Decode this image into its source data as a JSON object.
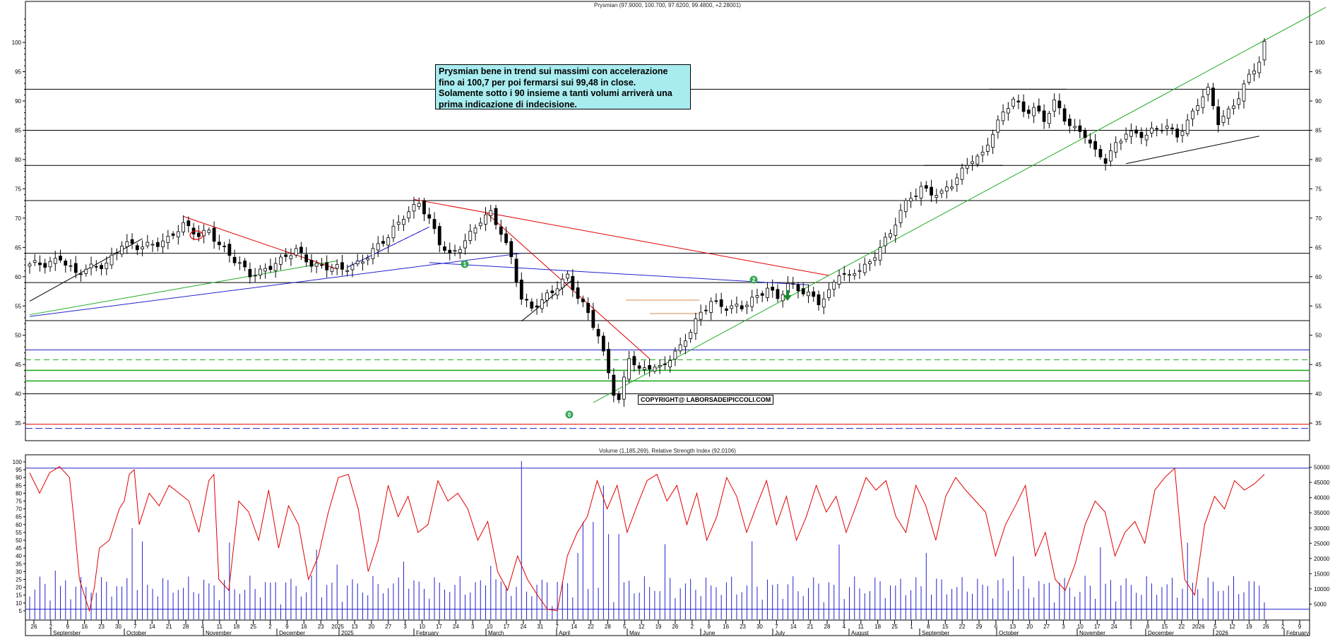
{
  "header": {
    "price_title": "Prysmian (97.9000, 100.700, 97.6200, 99.4800, +2.28001)",
    "indicator_title": "Volume (1,185,269), Relative Strength Index (92.0106)"
  },
  "annotation": {
    "lines": [
      "Prysmian bene in trend sui massimi con accelerazione",
      "fino ai 100,7 per poi fermarsi sui 99,48 in close.",
      "Solamente sotto i 90 insieme a tanti volumi arriverà una",
      "prima indicazione di indecisione."
    ]
  },
  "copyright": "COPYRIGHT@ LABORSADEIPICCOLI.COM",
  "markers": {
    "labels": [
      "1",
      "2",
      "0"
    ],
    "colors": {
      "circle": "#3aa55a",
      "arrow": "#1a8a2a"
    }
  },
  "colors": {
    "candle": "#000000",
    "rsi": "#e00000",
    "volume": "#2222cc",
    "green_line": "#22aa22",
    "blue_line": "#2222cc",
    "red_line": "#e00000",
    "grid_line": "#000000"
  },
  "chart_data": [
    {
      "type": "candlestick",
      "title": "Prysmian (97.9000, 100.700, 97.6200, 99.4800, +2.28001)",
      "ylim": [
        32,
        107
      ],
      "y_ticks": [
        35,
        40,
        45,
        50,
        55,
        60,
        65,
        70,
        75,
        80,
        85,
        90,
        95,
        100
      ],
      "x_day_ticks": [
        "26",
        "2",
        "9",
        "16",
        "23",
        "30",
        "7",
        "14",
        "21",
        "28",
        "4",
        "11",
        "18",
        "25",
        "2",
        "9",
        "16",
        "23",
        "2025",
        "13",
        "20",
        "27",
        "3",
        "10",
        "17",
        "24",
        "3",
        "10",
        "17",
        "24",
        "31",
        "7",
        "14",
        "22",
        "28",
        "5",
        "12",
        "19",
        "26",
        "2",
        "9",
        "16",
        "23",
        "30",
        "7",
        "14",
        "21",
        "28",
        "4",
        "11",
        "18",
        "25",
        "1",
        "8",
        "15",
        "22",
        "29",
        "6",
        "13",
        "20",
        "27",
        "3",
        "10",
        "17",
        "24",
        "1",
        "8",
        "15",
        "22",
        "2026",
        "5",
        "12",
        "19",
        "26",
        "2",
        "9"
      ],
      "x_month_labels": [
        "September",
        "October",
        "November",
        "December",
        "2025",
        "February",
        "March",
        "April",
        "May",
        "June",
        "July",
        "August",
        "September",
        "October",
        "November",
        "December",
        "2026",
        "February"
      ],
      "horizontal_levels": [
        {
          "value": 92,
          "style": "solid",
          "color": "#000000"
        },
        {
          "value": 85,
          "style": "solid",
          "color": "#000000"
        },
        {
          "value": 79,
          "style": "solid",
          "color": "#000000"
        },
        {
          "value": 73,
          "style": "solid",
          "color": "#000000"
        },
        {
          "value": 64,
          "style": "solid",
          "color": "#000000"
        },
        {
          "value": 59,
          "style": "solid",
          "color": "#000000"
        },
        {
          "value": 52.5,
          "style": "solid",
          "color": "#000000"
        },
        {
          "value": 47.5,
          "style": "solid",
          "color": "#2222cc"
        },
        {
          "value": 45.8,
          "style": "dashed",
          "color": "#22aa22"
        },
        {
          "value": 44,
          "style": "solid",
          "color": "#22aa22"
        },
        {
          "value": 42.2,
          "style": "solid",
          "color": "#22aa22"
        },
        {
          "value": 40,
          "style": "solid",
          "color": "#000000"
        },
        {
          "value": 34.8,
          "style": "solid",
          "color": "#e00000"
        },
        {
          "value": 34.1,
          "style": "dashed",
          "color": "#2222cc"
        }
      ],
      "close_path": [
        [
          0,
          61.8
        ],
        [
          3,
          62.2
        ],
        [
          6,
          63.5
        ],
        [
          9,
          60.2
        ],
        [
          12,
          61.5
        ],
        [
          15,
          62.5
        ],
        [
          18,
          65.5
        ],
        [
          21,
          64.8
        ],
        [
          24,
          65.8
        ],
        [
          27,
          66.5
        ],
        [
          30,
          68.5
        ],
        [
          33,
          67.2
        ],
        [
          35,
          68.2
        ],
        [
          37,
          65.5
        ],
        [
          40,
          62.5
        ],
        [
          43,
          60.5
        ],
        [
          46,
          61.5
        ],
        [
          49,
          62.5
        ],
        [
          52,
          64.5
        ],
        [
          55,
          62.5
        ],
        [
          58,
          61.5
        ],
        [
          61,
          61.0
        ],
        [
          64,
          62.5
        ],
        [
          67,
          64.5
        ],
        [
          70,
          66.5
        ],
        [
          73,
          70.5
        ],
        [
          76,
          73.0
        ],
        [
          78,
          69.5
        ],
        [
          80,
          65.5
        ],
        [
          82,
          63.5
        ],
        [
          85,
          66.5
        ],
        [
          88,
          69.5
        ],
        [
          90,
          70.5
        ],
        [
          92,
          67.5
        ],
        [
          94,
          63.5
        ],
        [
          96,
          56.5
        ],
        [
          98,
          54.5
        ],
        [
          100,
          55.5
        ],
        [
          103,
          58.5
        ],
        [
          105,
          60.5
        ],
        [
          107,
          56.5
        ],
        [
          109,
          53.5
        ],
        [
          111,
          49.5
        ],
        [
          113,
          44.0
        ],
        [
          114,
          40.5
        ],
        [
          115,
          39.0
        ],
        [
          117,
          46.5
        ],
        [
          119,
          43.5
        ],
        [
          121,
          44.5
        ],
        [
          123,
          44.5
        ],
        [
          125,
          46.5
        ],
        [
          127,
          48.0
        ],
        [
          129,
          50.5
        ],
        [
          131,
          53.5
        ],
        [
          133,
          56.0
        ],
        [
          136,
          55.0
        ],
        [
          139,
          54.5
        ],
        [
          142,
          56.5
        ],
        [
          144,
          58.5
        ],
        [
          146,
          56.5
        ],
        [
          148,
          58.5
        ],
        [
          150,
          57.5
        ],
        [
          152,
          57.0
        ],
        [
          154,
          56.0
        ],
        [
          156,
          57.5
        ],
        [
          158,
          60.5
        ],
        [
          160,
          59.5
        ],
        [
          162,
          61.5
        ],
        [
          164,
          62.5
        ],
        [
          166,
          65.5
        ],
        [
          168,
          67.0
        ],
        [
          170,
          71.0
        ],
        [
          172,
          73.5
        ],
        [
          174,
          75.5
        ],
        [
          176,
          74.5
        ],
        [
          178,
          74.0
        ],
        [
          180,
          75.5
        ],
        [
          182,
          78.0
        ],
        [
          184,
          80.5
        ],
        [
          186,
          81.0
        ],
        [
          188,
          84.5
        ],
        [
          190,
          87.5
        ],
        [
          192,
          90.5
        ],
        [
          194,
          88.5
        ],
        [
          196,
          89.0
        ],
        [
          198,
          86.5
        ],
        [
          200,
          89.5
        ],
        [
          202,
          87.0
        ],
        [
          204,
          85.5
        ],
        [
          206,
          84.5
        ],
        [
          208,
          81.0
        ],
        [
          210,
          79.5
        ],
        [
          212,
          82.5
        ],
        [
          214,
          85.0
        ],
        [
          216,
          84.5
        ],
        [
          218,
          84.0
        ],
        [
          220,
          85.0
        ],
        [
          222,
          85.5
        ],
        [
          224,
          84.5
        ],
        [
          226,
          86.5
        ],
        [
          228,
          89.5
        ],
        [
          230,
          91.5
        ],
        [
          232,
          86.5
        ],
        [
          234,
          88.5
        ],
        [
          236,
          91.0
        ],
        [
          238,
          94.0
        ],
        [
          240,
          96.5
        ],
        [
          241,
          99.5
        ]
      ],
      "trendlines": [
        {
          "color": "#e00000",
          "from": [
            30,
            70.3
          ],
          "to": [
            60,
            61.3
          ]
        },
        {
          "color": "#e00000",
          "from": [
            75,
            73.2
          ],
          "to": [
            156,
            60.2
          ]
        },
        {
          "color": "#e00000",
          "from": [
            89,
            71.0
          ],
          "to": [
            121,
            46.0
          ]
        },
        {
          "color": "#2222cc",
          "from": [
            0,
            53.2
          ],
          "to": [
            96,
            64.0
          ]
        },
        {
          "color": "#2222cc",
          "from": [
            78,
            62.4
          ],
          "to": [
            152,
            58.6
          ]
        },
        {
          "color": "#2222cc",
          "from": [
            62,
            61.6
          ],
          "to": [
            78,
            68.5
          ]
        },
        {
          "color": "#22aa22",
          "from": [
            0,
            53.5
          ],
          "to": [
            60,
            62.7
          ]
        },
        {
          "color": "#22aa22",
          "from": [
            110,
            38.5
          ],
          "to": [
            253,
            106
          ]
        },
        {
          "color": "#000000",
          "from": [
            0,
            55.8
          ],
          "to": [
            22,
            66.5
          ]
        },
        {
          "color": "#000000",
          "from": [
            96,
            52.4
          ],
          "to": [
            106,
            59.5
          ]
        },
        {
          "color": "#000000",
          "from": [
            214,
            79.3
          ],
          "to": [
            240,
            84.0
          ]
        }
      ]
    },
    {
      "type": "bar",
      "title": "Volume (1,185,269), Relative Strength Index (92.0106)",
      "series_name": "Volume",
      "ylim": [
        0,
        52000
      ],
      "y_ticks": [
        5000,
        10000,
        15000,
        20000,
        25000,
        30000,
        35000,
        40000,
        45000,
        50000
      ],
      "reference_levels": [
        {
          "value": 96
        },
        {
          "value": 6
        }
      ],
      "rsi_ylim": [
        0,
        100
      ],
      "rsi_ticks": [
        5,
        10,
        15,
        20,
        25,
        30,
        35,
        40,
        45,
        50,
        55,
        60,
        65,
        70,
        75,
        80,
        85,
        90,
        95,
        100
      ],
      "rsi_path": [
        [
          0,
          93
        ],
        [
          2,
          80
        ],
        [
          4,
          93
        ],
        [
          6,
          97
        ],
        [
          8,
          90
        ],
        [
          9,
          60
        ],
        [
          10,
          25
        ],
        [
          11,
          15
        ],
        [
          12,
          5
        ],
        [
          13,
          20
        ],
        [
          14,
          45
        ],
        [
          16,
          50
        ],
        [
          18,
          70
        ],
        [
          19,
          75
        ],
        [
          20,
          92
        ],
        [
          21,
          95
        ],
        [
          22,
          60
        ],
        [
          24,
          80
        ],
        [
          26,
          72
        ],
        [
          28,
          85
        ],
        [
          30,
          80
        ],
        [
          32,
          75
        ],
        [
          34,
          55
        ],
        [
          36,
          88
        ],
        [
          37,
          92
        ],
        [
          38,
          25
        ],
        [
          40,
          18
        ],
        [
          42,
          75
        ],
        [
          44,
          68
        ],
        [
          46,
          50
        ],
        [
          48,
          82
        ],
        [
          50,
          45
        ],
        [
          52,
          72
        ],
        [
          54,
          60
        ],
        [
          56,
          25
        ],
        [
          58,
          40
        ],
        [
          60,
          68
        ],
        [
          62,
          90
        ],
        [
          64,
          92
        ],
        [
          66,
          70
        ],
        [
          68,
          30
        ],
        [
          70,
          50
        ],
        [
          72,
          85
        ],
        [
          74,
          65
        ],
        [
          76,
          78
        ],
        [
          78,
          55
        ],
        [
          80,
          60
        ],
        [
          82,
          88
        ],
        [
          84,
          75
        ],
        [
          86,
          80
        ],
        [
          88,
          70
        ],
        [
          90,
          50
        ],
        [
          92,
          62
        ],
        [
          94,
          30
        ],
        [
          96,
          18
        ],
        [
          98,
          40
        ],
        [
          100,
          25
        ],
        [
          102,
          15
        ],
        [
          104,
          6
        ],
        [
          106,
          5
        ],
        [
          108,
          40
        ],
        [
          110,
          55
        ],
        [
          112,
          65
        ],
        [
          114,
          88
        ],
        [
          116,
          70
        ],
        [
          118,
          85
        ],
        [
          120,
          55
        ],
        [
          122,
          72
        ],
        [
          124,
          88
        ],
        [
          126,
          92
        ],
        [
          128,
          75
        ],
        [
          130,
          85
        ],
        [
          132,
          60
        ],
        [
          134,
          80
        ],
        [
          136,
          50
        ],
        [
          138,
          65
        ],
        [
          140,
          90
        ],
        [
          142,
          78
        ],
        [
          144,
          55
        ],
        [
          146,
          72
        ],
        [
          148,
          88
        ],
        [
          150,
          60
        ],
        [
          152,
          78
        ],
        [
          154,
          50
        ],
        [
          156,
          65
        ],
        [
          158,
          85
        ],
        [
          160,
          68
        ],
        [
          162,
          78
        ],
        [
          164,
          55
        ],
        [
          166,
          72
        ],
        [
          168,
          90
        ],
        [
          170,
          82
        ],
        [
          172,
          88
        ],
        [
          174,
          65
        ],
        [
          176,
          55
        ],
        [
          178,
          85
        ],
        [
          180,
          72
        ],
        [
          182,
          50
        ],
        [
          184,
          78
        ],
        [
          186,
          90
        ],
        [
          188,
          82
        ],
        [
          190,
          75
        ],
        [
          192,
          68
        ],
        [
          194,
          40
        ],
        [
          196,
          60
        ],
        [
          198,
          72
        ],
        [
          200,
          85
        ],
        [
          202,
          40
        ],
        [
          204,
          55
        ],
        [
          206,
          25
        ],
        [
          208,
          18
        ],
        [
          210,
          35
        ],
        [
          212,
          60
        ],
        [
          214,
          75
        ],
        [
          216,
          68
        ],
        [
          218,
          40
        ],
        [
          220,
          55
        ],
        [
          222,
          62
        ],
        [
          224,
          48
        ],
        [
          226,
          82
        ],
        [
          228,
          90
        ],
        [
          230,
          96
        ],
        [
          232,
          25
        ],
        [
          234,
          15
        ],
        [
          236,
          60
        ],
        [
          238,
          78
        ],
        [
          240,
          70
        ],
        [
          242,
          88
        ],
        [
          244,
          82
        ],
        [
          246,
          86
        ],
        [
          248,
          92
        ]
      ]
    }
  ]
}
